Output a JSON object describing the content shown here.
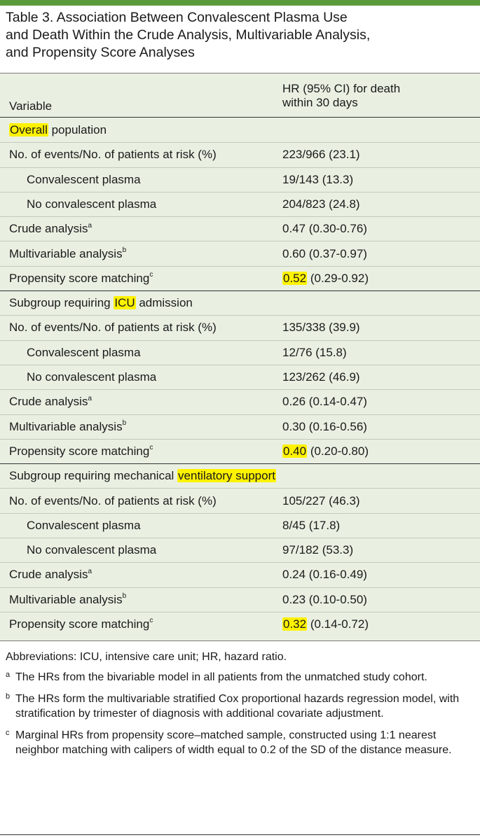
{
  "title_lines": [
    "Table 3. Association Between Convalescent Plasma Use",
    "and Death Within the Crude Analysis, Multivariable Analysis,",
    "and Propensity Score Analyses"
  ],
  "header": {
    "variable": "Variable",
    "hr_line1": "HR (95% CI) for death",
    "hr_line2": "within 30 days"
  },
  "rows": [
    {
      "pre": "",
      "hl": "Overall",
      "post": " population",
      "sup": "",
      "value": "",
      "value_hl": "",
      "indent": false
    },
    {
      "pre": "No. of events/No. of patients at risk (%)",
      "hl": "",
      "post": "",
      "sup": "",
      "value": "223/966 (23.1)",
      "value_hl": "",
      "indent": false
    },
    {
      "pre": "Convalescent plasma",
      "hl": "",
      "post": "",
      "sup": "",
      "value": "19/143 (13.3)",
      "value_hl": "",
      "indent": true
    },
    {
      "pre": "No convalescent plasma",
      "hl": "",
      "post": "",
      "sup": "",
      "value": "204/823 (24.8)",
      "value_hl": "",
      "indent": true
    },
    {
      "pre": "Crude analysis",
      "hl": "",
      "post": "",
      "sup": "a",
      "value": "0.47 (0.30-0.76)",
      "value_hl": "",
      "indent": false
    },
    {
      "pre": "Multivariable analysis",
      "hl": "",
      "post": "",
      "sup": "b",
      "value": "0.60 (0.37-0.97)",
      "value_hl": "",
      "indent": false
    },
    {
      "pre": "Propensity score matching",
      "hl": "",
      "post": "",
      "sup": "c",
      "value": "(0.29-0.92)",
      "value_hl": "0.52",
      "indent": false
    },
    {
      "pre": "Subgroup requiring ",
      "hl": "ICU",
      "post": " admission",
      "sup": "",
      "value": "",
      "value_hl": "",
      "indent": false
    },
    {
      "pre": "No. of events/No. of patients at risk (%)",
      "hl": "",
      "post": "",
      "sup": "",
      "value": "135/338 (39.9)",
      "value_hl": "",
      "indent": false
    },
    {
      "pre": "Convalescent plasma",
      "hl": "",
      "post": "",
      "sup": "",
      "value": "12/76 (15.8)",
      "value_hl": "",
      "indent": true
    },
    {
      "pre": "No convalescent plasma",
      "hl": "",
      "post": "",
      "sup": "",
      "value": "123/262 (46.9)",
      "value_hl": "",
      "indent": true
    },
    {
      "pre": "Crude analysis",
      "hl": "",
      "post": "",
      "sup": "a",
      "value": "0.26 (0.14-0.47)",
      "value_hl": "",
      "indent": false
    },
    {
      "pre": "Multivariable analysis",
      "hl": "",
      "post": "",
      "sup": "b",
      "value": "0.30 (0.16-0.56)",
      "value_hl": "",
      "indent": false
    },
    {
      "pre": "Propensity score matching",
      "hl": "",
      "post": "",
      "sup": "c",
      "value": "(0.20-0.80)",
      "value_hl": "0.40",
      "indent": false
    },
    {
      "pre": "Subgroup requiring mechanical ",
      "hl": "ventilatory support",
      "post": "",
      "sup": "",
      "value": "",
      "value_hl": "",
      "indent": false
    },
    {
      "pre": "No. of events/No. of patients at risk (%)",
      "hl": "",
      "post": "",
      "sup": "",
      "value": "105/227 (46.3)",
      "value_hl": "",
      "indent": false
    },
    {
      "pre": "Convalescent plasma",
      "hl": "",
      "post": "",
      "sup": "",
      "value": "8/45 (17.8)",
      "value_hl": "",
      "indent": true
    },
    {
      "pre": "No convalescent plasma",
      "hl": "",
      "post": "",
      "sup": "",
      "value": "97/182 (53.3)",
      "value_hl": "",
      "indent": true
    },
    {
      "pre": "Crude analysis",
      "hl": "",
      "post": "",
      "sup": "a",
      "value": "0.24 (0.16-0.49)",
      "value_hl": "",
      "indent": false
    },
    {
      "pre": "Multivariable analysis",
      "hl": "",
      "post": "",
      "sup": "b",
      "value": "0.23 (0.10-0.50)",
      "value_hl": "",
      "indent": false
    },
    {
      "pre": "Propensity score matching",
      "hl": "",
      "post": "",
      "sup": "c",
      "value": "(0.14-0.72)",
      "value_hl": "0.32",
      "indent": false
    }
  ],
  "footer": {
    "abbreviations": "Abbreviations: ICU, intensive care unit; HR, hazard ratio.",
    "notes": [
      {
        "mark": "a",
        "text": "The HRs from the bivariable model in all patients from the unmatched study cohort."
      },
      {
        "mark": "b",
        "text": "The HRs form the multivariable stratified Cox proportional hazards regression model, with stratification by trimester of diagnosis with additional covariate adjustment."
      },
      {
        "mark": "c",
        "text": "Marginal HRs from propensity score–matched sample, constructed using 1:1 nearest neighbor matching with calipers of width equal to 0.2 of the SD of the distance measure."
      }
    ]
  },
  "colors": {
    "table_bg": "#e9f0e2",
    "highlight": "#fff200",
    "top_bar": "#5a9a3a"
  }
}
